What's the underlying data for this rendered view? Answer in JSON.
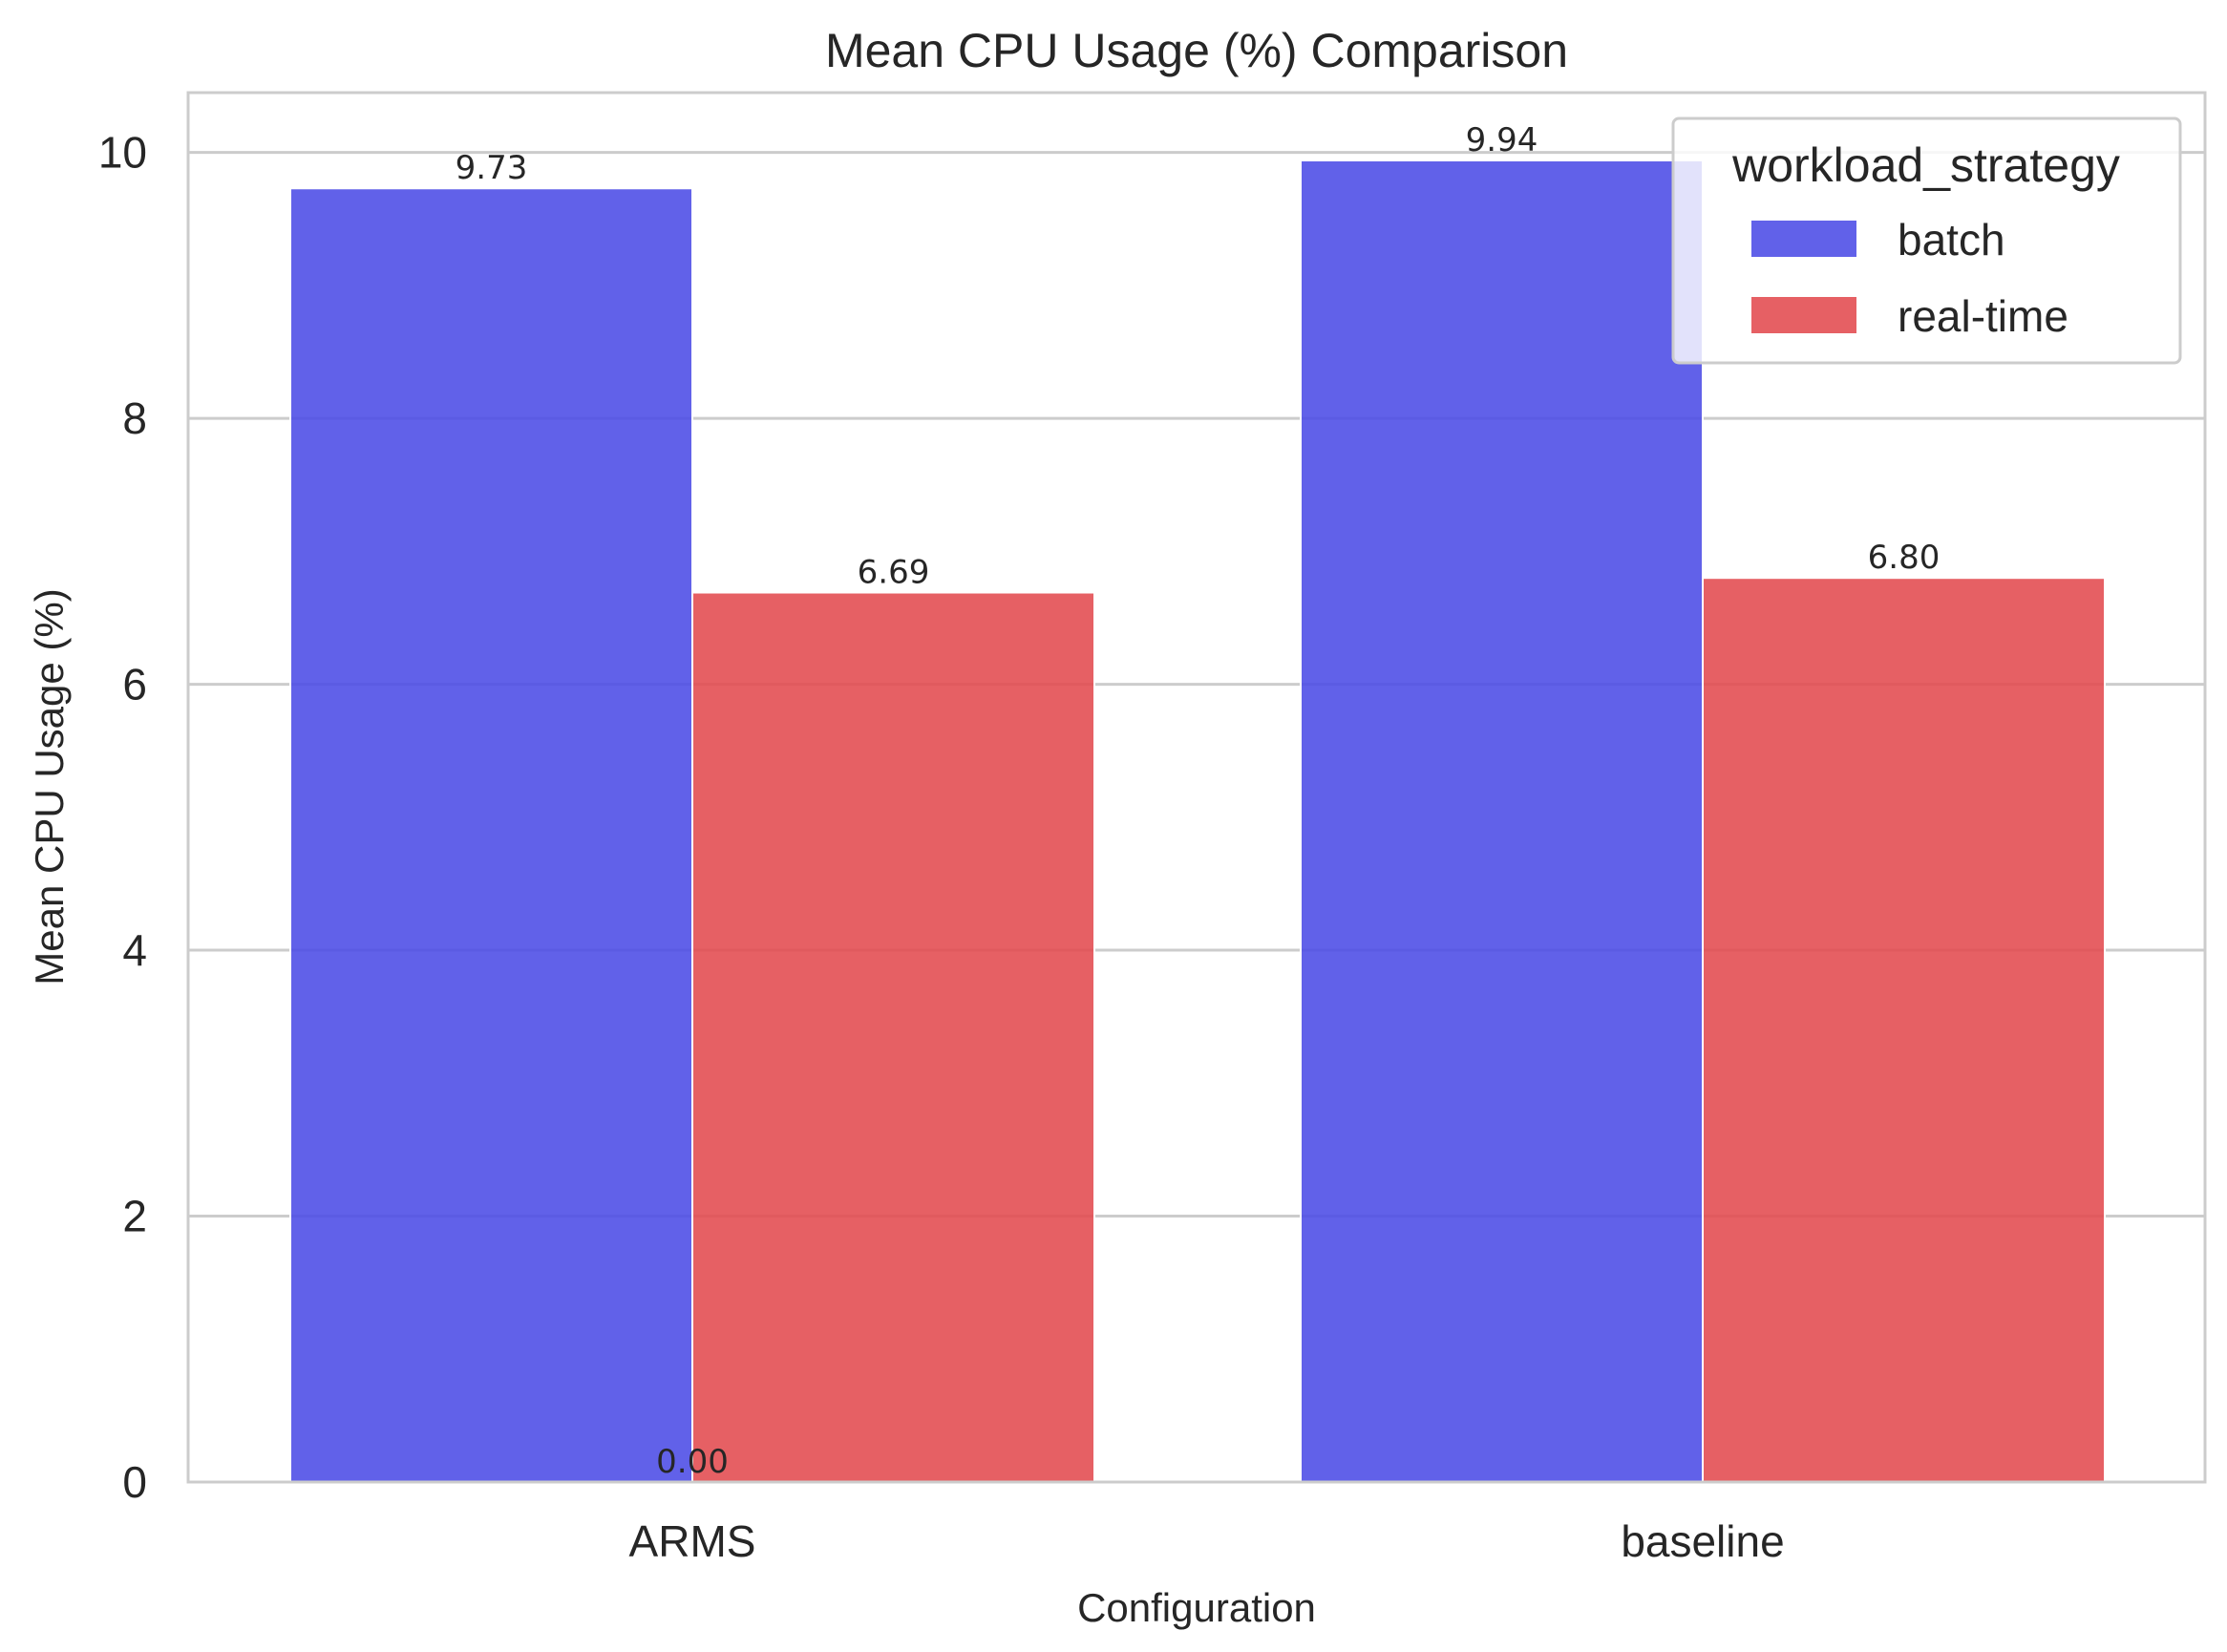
{
  "chart_data": {
    "type": "bar",
    "title": "Mean CPU Usage (%) Comparison",
    "xlabel": "Configuration",
    "ylabel": "Mean CPU Usage (%)",
    "categories": [
      "ARMS",
      "baseline"
    ],
    "series": [
      {
        "name": "batch",
        "values": [
          9.73,
          9.94
        ],
        "color": "#4b4be6"
      },
      {
        "name": "real-time",
        "values": [
          6.69,
          6.8
        ],
        "color": "#e34a4e"
      }
    ],
    "ylim": [
      0,
      10.45
    ],
    "yticks": [
      "0",
      "2",
      "4",
      "6",
      "8",
      "10"
    ],
    "grid": true,
    "legend": {
      "title": "workload_strategy",
      "placement": "top-right"
    },
    "bar_labels": [
      {
        "text": "9.73",
        "category": "ARMS",
        "series": "batch",
        "value": 9.73
      },
      {
        "text": "6.69",
        "category": "ARMS",
        "series": "real-time",
        "value": 6.69
      },
      {
        "text": "9.94",
        "category": "baseline",
        "series": "batch",
        "value": 9.94
      },
      {
        "text": "6.80",
        "category": "baseline",
        "series": "real-time",
        "value": 6.8
      },
      {
        "text": "0.00",
        "category": "ARMS",
        "series": "between",
        "value": 0
      }
    ]
  }
}
